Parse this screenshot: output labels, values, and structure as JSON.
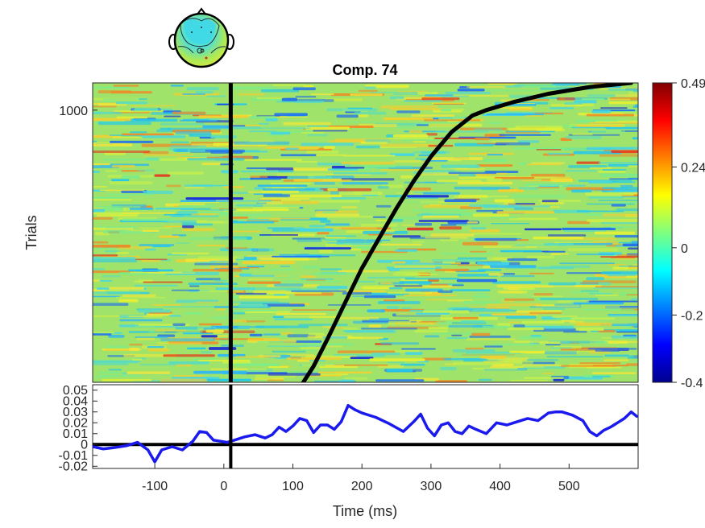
{
  "chart_data": [
    {
      "type": "heatmap",
      "title": "Comp. 74",
      "xlabel": "",
      "ylabel": "Trials",
      "xlim": [
        -190,
        600
      ],
      "ylim": [
        1,
        1100
      ],
      "yticks": [
        {
          "value": 1000,
          "label": "1000"
        }
      ],
      "event_line_x": 10,
      "sorting_curve": {
        "x": [
          115,
          130,
          150,
          175,
          200,
          225,
          250,
          275,
          300,
          330,
          360,
          380,
          420,
          470,
          530,
          590
        ],
        "y": [
          1,
          60,
          160,
          290,
          420,
          530,
          640,
          740,
          830,
          920,
          980,
          1000,
          1030,
          1060,
          1085,
          1100
        ]
      },
      "colorbar": {
        "ticks": [
          {
            "value": 0.49,
            "label": "0.49"
          },
          {
            "value": 0.24,
            "label": "0.24"
          },
          {
            "value": 0,
            "label": "0"
          },
          {
            "value": -0.2,
            "label": "-0.2"
          },
          {
            "value": -0.4,
            "label": "-0.4"
          }
        ],
        "range": [
          -0.4,
          0.49
        ]
      },
      "grid": false
    },
    {
      "type": "line",
      "xlabel": "Time (ms)",
      "ylabel": "",
      "xlim": [
        -190,
        600
      ],
      "ylim": [
        -0.022,
        0.055
      ],
      "xticks": [
        {
          "value": -100,
          "label": "-100"
        },
        {
          "value": 0,
          "label": "0"
        },
        {
          "value": 100,
          "label": "100"
        },
        {
          "value": 200,
          "label": "200"
        },
        {
          "value": 300,
          "label": "300"
        },
        {
          "value": 400,
          "label": "400"
        },
        {
          "value": 500,
          "label": "500"
        }
      ],
      "yticks": [
        {
          "value": 0.05,
          "label": "0.05"
        },
        {
          "value": 0.04,
          "label": "0.04"
        },
        {
          "value": 0.03,
          "label": "0.03"
        },
        {
          "value": 0.02,
          "label": "0.02"
        },
        {
          "value": 0.01,
          "label": "0.01"
        },
        {
          "value": 0,
          "label": "0"
        },
        {
          "value": -0.01,
          "label": "-0.01"
        },
        {
          "value": -0.02,
          "label": "-0.02"
        }
      ],
      "zero_line": true,
      "event_line_x": 10,
      "series": [
        {
          "color": "#1a1aee",
          "x": [
            -190,
            -175,
            -160,
            -140,
            -125,
            -110,
            -100,
            -90,
            -75,
            -60,
            -45,
            -35,
            -25,
            -15,
            -5,
            5,
            15,
            30,
            45,
            60,
            70,
            80,
            90,
            100,
            110,
            120,
            130,
            140,
            150,
            160,
            170,
            180,
            190,
            200,
            220,
            240,
            260,
            275,
            285,
            295,
            305,
            315,
            325,
            335,
            345,
            355,
            365,
            380,
            395,
            410,
            425,
            440,
            455,
            470,
            480,
            490,
            505,
            520,
            530,
            540,
            550,
            560,
            570,
            580,
            590,
            598
          ],
          "values": [
            -0.002,
            -0.004,
            -0.003,
            -0.001,
            0.002,
            -0.005,
            -0.016,
            -0.005,
            -0.002,
            -0.005,
            0.003,
            0.012,
            0.011,
            0.004,
            0.003,
            0.002,
            0.004,
            0.007,
            0.009,
            0.006,
            0.009,
            0.016,
            0.012,
            0.017,
            0.024,
            0.022,
            0.011,
            0.018,
            0.018,
            0.014,
            0.021,
            0.036,
            0.032,
            0.029,
            0.025,
            0.019,
            0.012,
            0.021,
            0.028,
            0.015,
            0.008,
            0.018,
            0.02,
            0.012,
            0.01,
            0.017,
            0.014,
            0.01,
            0.02,
            0.018,
            0.021,
            0.024,
            0.022,
            0.029,
            0.03,
            0.03,
            0.027,
            0.022,
            0.012,
            0.008,
            0.013,
            0.016,
            0.02,
            0.024,
            0.03,
            0.026
          ]
        }
      ],
      "grid": false
    }
  ]
}
